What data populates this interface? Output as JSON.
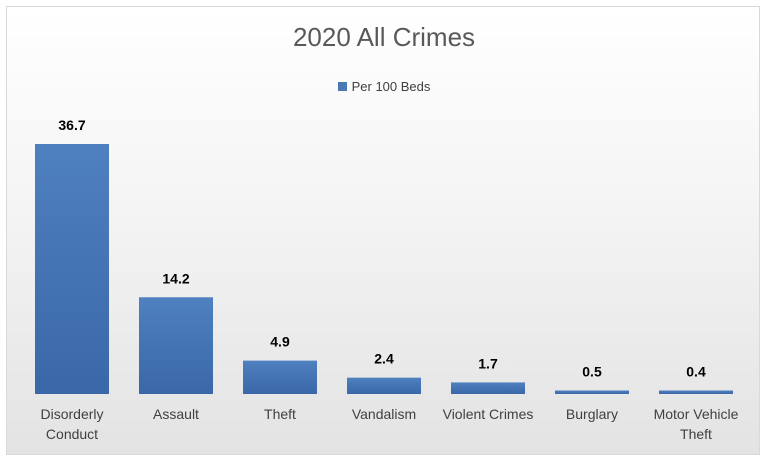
{
  "chart_data": {
    "type": "bar",
    "title": "2020 All Crimes",
    "categories": [
      [
        "Disorderly",
        "Conduct"
      ],
      [
        "Assault"
      ],
      [
        "Theft"
      ],
      [
        "Vandalism"
      ],
      [
        "Violent Crimes"
      ],
      [
        "Burglary"
      ],
      [
        "Motor Vehicle",
        "Theft"
      ]
    ],
    "series": [
      {
        "name": "Per 100 Beds",
        "values": [
          36.7,
          14.2,
          4.9,
          2.4,
          1.7,
          0.5,
          0.4
        ],
        "labels": [
          "36.7",
          "14.2",
          "4.9",
          "2.4",
          "1.7",
          "0.5",
          "0.4"
        ]
      }
    ],
    "ylim": [
      0,
      40
    ],
    "xlabel": "",
    "ylabel": "",
    "grid": false,
    "legend_position": "top",
    "colors": {
      "bar": "#4a78b5",
      "bar_dark": "#3a63a0"
    }
  }
}
